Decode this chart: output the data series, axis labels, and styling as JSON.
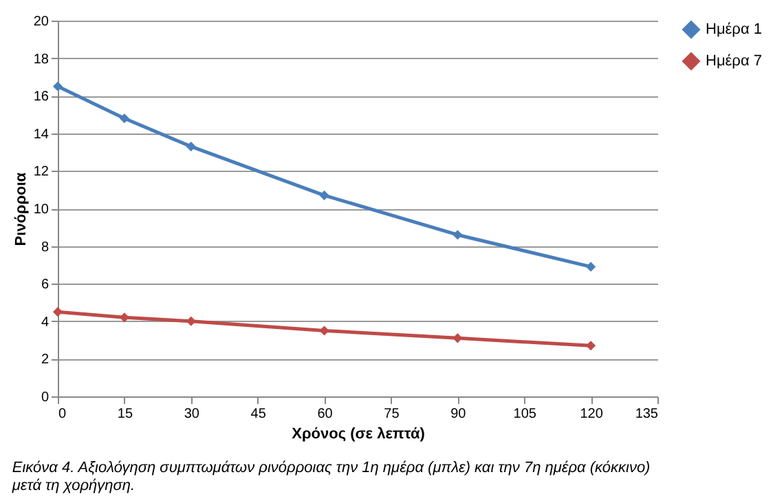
{
  "chart_data": {
    "type": "line",
    "xlabel": "Χρόνος (σε λεπτά)",
    "ylabel": "Ρινόρροια",
    "x": [
      0,
      15,
      30,
      60,
      90,
      120
    ],
    "series": [
      {
        "name": "Ημέρα 1",
        "color": "#4a7ebb",
        "values": [
          16.5,
          14.8,
          13.3,
          10.7,
          8.6,
          6.9
        ]
      },
      {
        "name": "Ημέρα 7",
        "color": "#be4b48",
        "values": [
          4.5,
          4.2,
          4.0,
          3.5,
          3.1,
          2.7
        ]
      }
    ],
    "xlim": [
      0,
      135
    ],
    "xticks": [
      0,
      15,
      30,
      45,
      60,
      75,
      90,
      105,
      120,
      135
    ],
    "ylim": [
      0,
      20
    ],
    "yticks": [
      0,
      2,
      4,
      6,
      8,
      10,
      12,
      14,
      16,
      18,
      20
    ],
    "grid": "y",
    "legend": "right",
    "marker": "diamond",
    "line_style": "solid",
    "annotations": [
      "Εικόνα 4. Αξιολόγηση συμπτωμάτων ρινόρροιας την 1η ημέρα (μπλε) και την 7η ημέρα (κόκκινο) μετά τη χορήγηση."
    ]
  }
}
